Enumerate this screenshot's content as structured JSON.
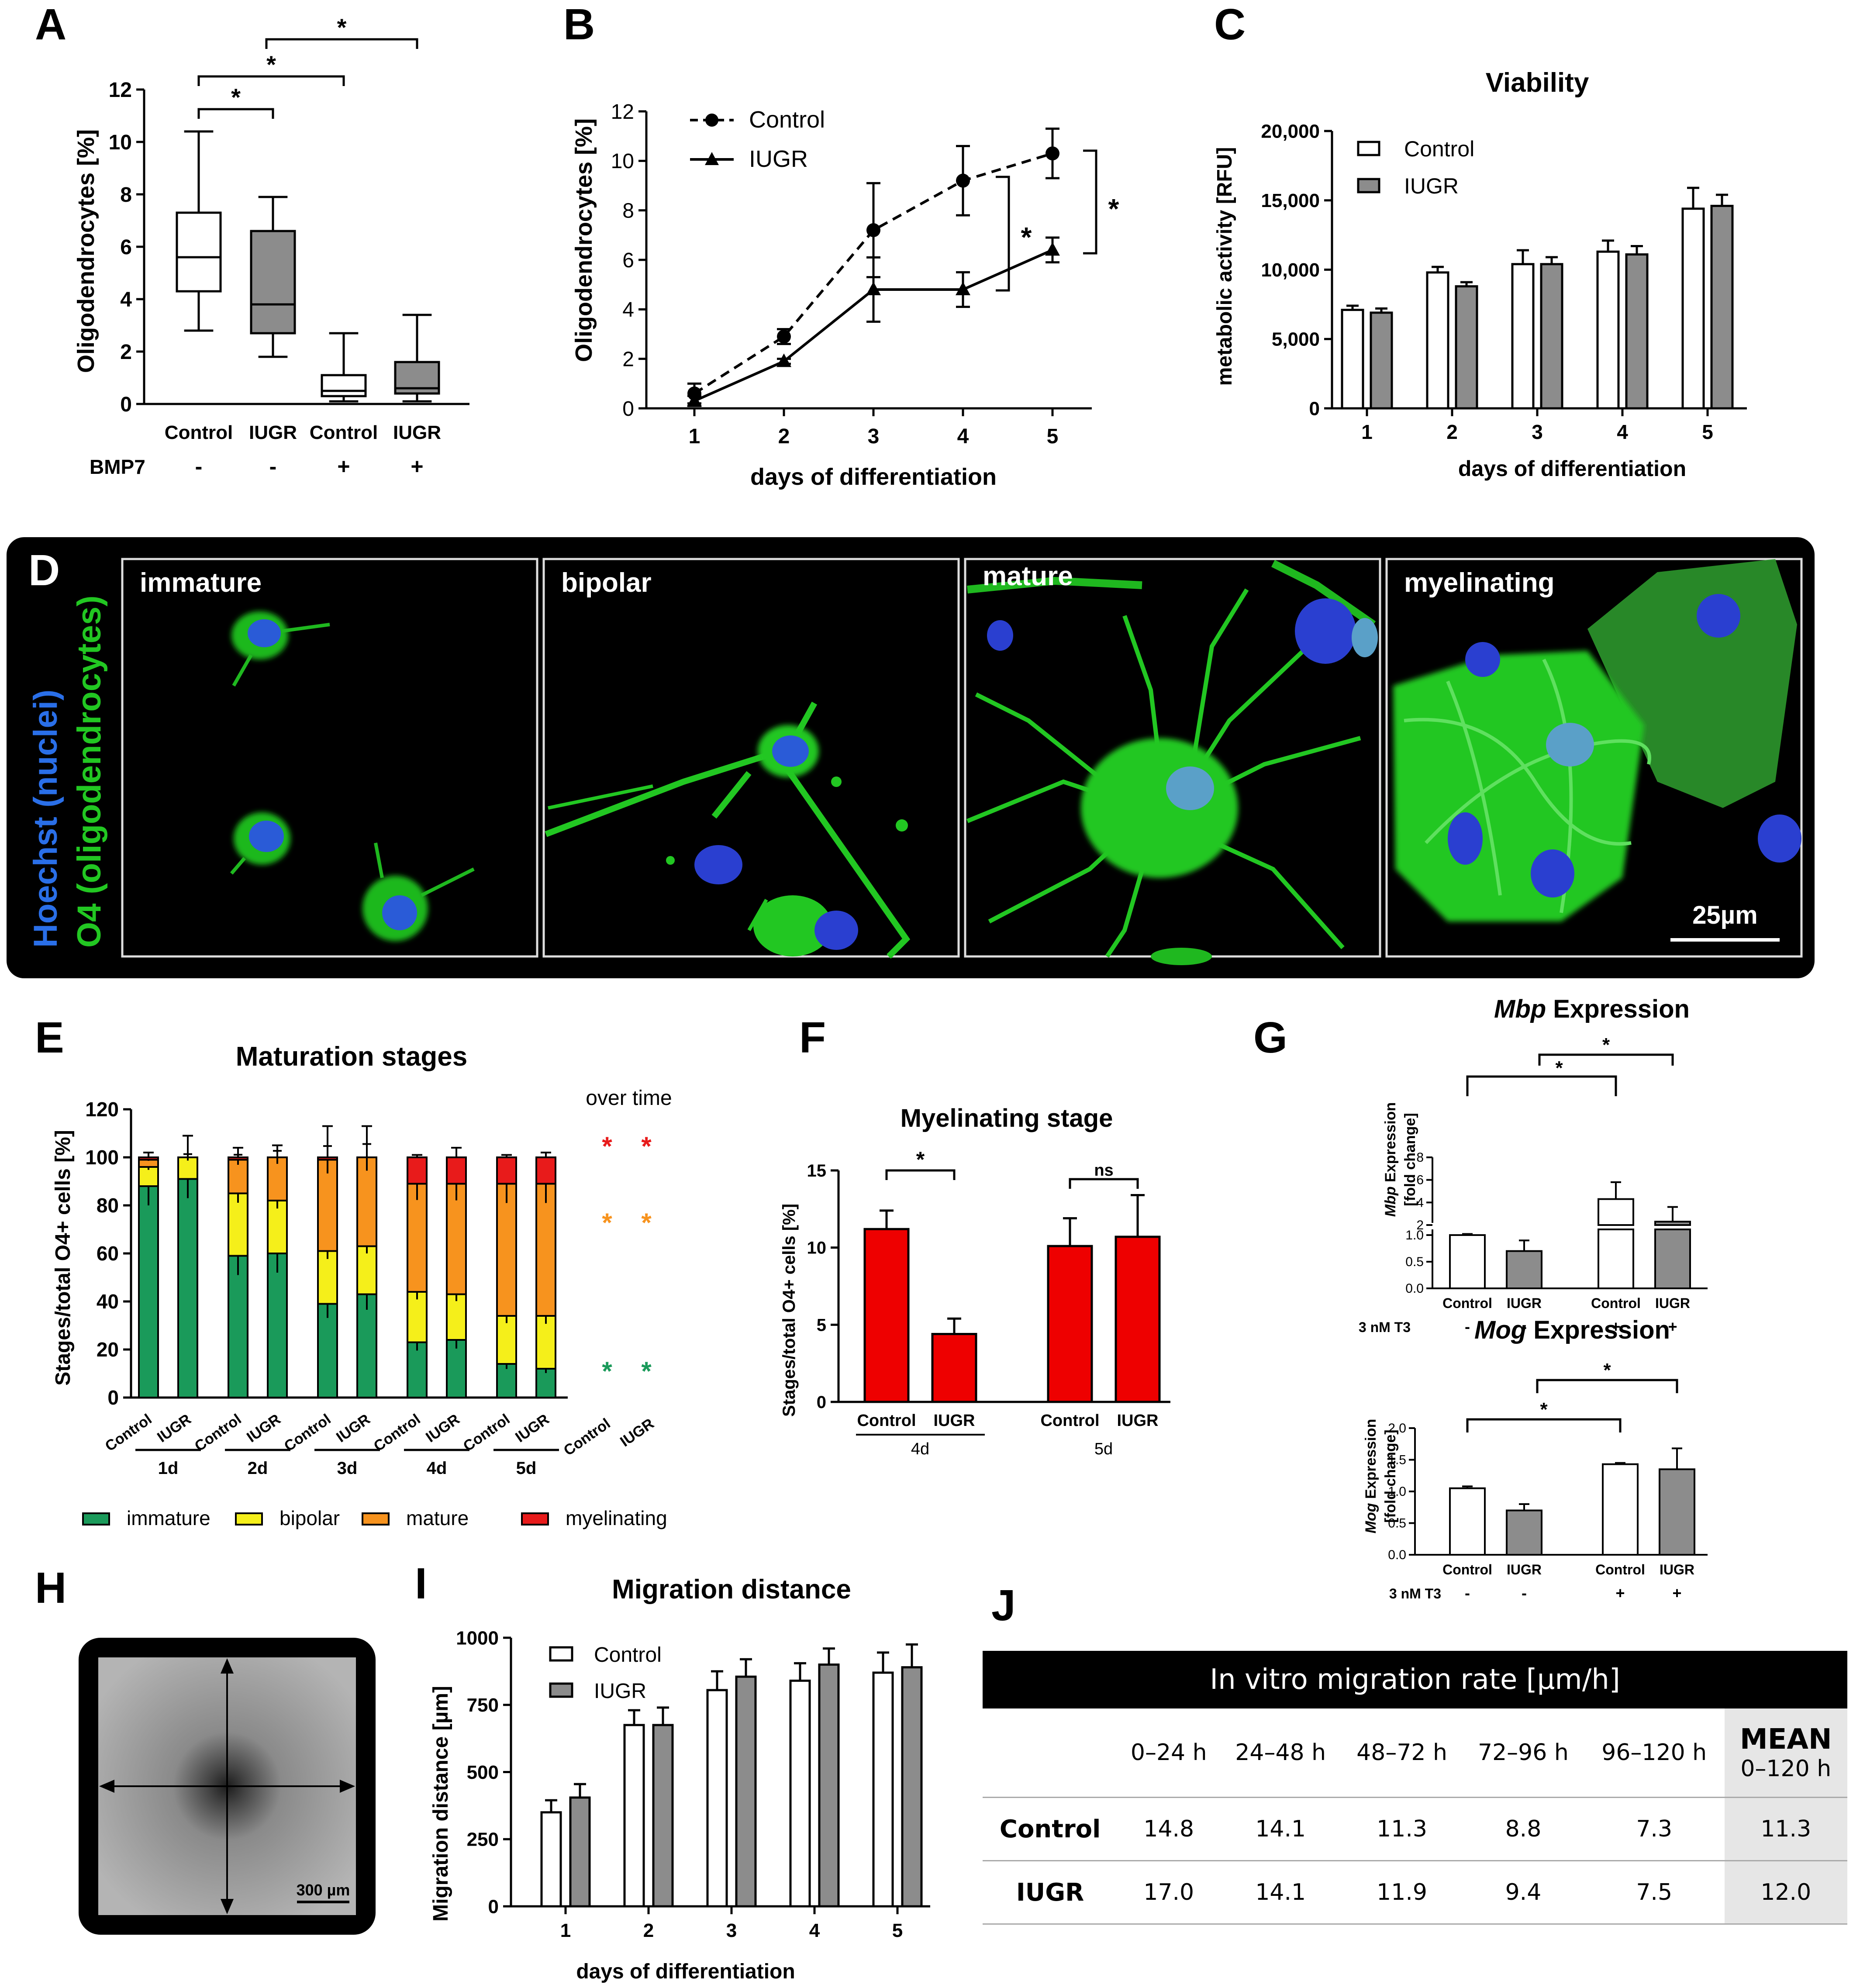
{
  "panelA": {
    "letter": "A",
    "ylabel": "Oligodendrocytes [%]",
    "yticks": [
      "0",
      "2",
      "4",
      "6",
      "8",
      "10",
      "12"
    ],
    "ymax": 12,
    "categories": [
      "Control",
      "IUGR",
      "Control",
      "IUGR"
    ],
    "bmp_label": "BMP7",
    "bmp_values": [
      "-",
      "-",
      "+",
      "+"
    ],
    "star": "*"
  },
  "panelB": {
    "letter": "B",
    "ylabel": "Oligodendrocytes [%]",
    "xlabel": "days of differentiation",
    "yticks": [
      "0",
      "2",
      "4",
      "6",
      "8",
      "10",
      "12"
    ],
    "xticks": [
      "1",
      "2",
      "3",
      "4",
      "5"
    ],
    "legend": [
      "Control",
      "IUGR"
    ],
    "star": "*"
  },
  "panelC": {
    "letter": "C",
    "title": "Viability",
    "ylabel": "metabolic activity  [RFU]",
    "xlabel": "days of differentiation",
    "yticks": [
      "0",
      "5,000",
      "10,000",
      "15,000",
      "20,000"
    ],
    "xticks": [
      "1",
      "2",
      "3",
      "4",
      "5"
    ],
    "legend": [
      "Control",
      "IUGR"
    ]
  },
  "panelD": {
    "letter": "D",
    "side_label_blue": "Hoechst (nuclei)",
    "side_label_green": "O4 (oligodendrocytes)",
    "stages": [
      "immature",
      "bipolar",
      "mature",
      "myelinating"
    ],
    "scale": "25µm",
    "colors": {
      "nuclei": "#2a5bd7",
      "o4": "#1fd61f"
    }
  },
  "panelE": {
    "letter": "E",
    "title": "Maturation stages",
    "ylabel": "Stages/total O4+ cells [%]",
    "yticks": [
      "0",
      "20",
      "40",
      "60",
      "80",
      "100",
      "120"
    ],
    "group_labels": [
      "1d",
      "2d",
      "3d",
      "4d",
      "5d"
    ],
    "bar_labels": [
      "Control",
      "IUGR"
    ],
    "over_time": "over time",
    "star": "*",
    "legend": [
      "immature",
      "bipolar",
      "mature",
      "myelinating"
    ],
    "colors": {
      "immature": "#1a9a5a",
      "bipolar": "#f5ef1a",
      "mature": "#f7931e",
      "myelinating": "#e81b1b"
    }
  },
  "panelF": {
    "letter": "F",
    "title": "Myelinating stage",
    "ylabel": "Stages/total O4+ cells [%]",
    "yticks": [
      "0",
      "5",
      "10",
      "15"
    ],
    "bar_labels": [
      "Control",
      "IUGR",
      "Control",
      "IUGR"
    ],
    "group_labels": [
      "4d",
      "5d"
    ],
    "star": "*",
    "ns": "ns"
  },
  "panelG": {
    "letter": "G",
    "mbp_title_italic": "Mbp",
    "mog_title_italic": "Mog",
    "title_suffix": " Expression",
    "ylabel_line2": "[fold change]",
    "mbp_yticks_low": [
      "0.0",
      "0.5",
      "1.0"
    ],
    "mbp_yticks_high": [
      "2",
      "4",
      "6",
      "8"
    ],
    "mog_yticks": [
      "0.0",
      "0.5",
      "1.0",
      "1.5",
      "2.0"
    ],
    "categories": [
      "Control",
      "IUGR",
      "Control",
      "IUGR"
    ],
    "t3_label": "3 nM T3",
    "t3_values": [
      "-",
      "-",
      "+",
      "+"
    ],
    "star": "*"
  },
  "panelH": {
    "letter": "H",
    "scale": "300 µm"
  },
  "panelI": {
    "letter": "I",
    "title": "Migration distance",
    "ylabel": "Migration distance [µm]",
    "xlabel": "days of differentiation",
    "yticks": [
      "0",
      "250",
      "500",
      "750",
      "1000"
    ],
    "xticks": [
      "1",
      "2",
      "3",
      "4",
      "5"
    ],
    "legend": [
      "Control",
      "IUGR"
    ]
  },
  "panelJ": {
    "letter": "J",
    "title": "In vitro migration rate [µm/h]",
    "columns": [
      "0–24 h",
      "24–48 h",
      "48–72 h",
      "72–96 h",
      "96–120 h"
    ],
    "mean_header": "MEAN",
    "mean_sub": "0–120 h",
    "rows": [
      {
        "label": "Control",
        "values": [
          "14.8",
          "14.1",
          "11.3",
          "8.8",
          "7.3"
        ],
        "mean": "11.3"
      },
      {
        "label": "IUGR",
        "values": [
          "17.0",
          "14.1",
          "11.9",
          "9.4",
          "7.5"
        ],
        "mean": "12.0"
      }
    ]
  },
  "chart_data": [
    {
      "panel": "A",
      "type": "box",
      "ylim": [
        0,
        12
      ],
      "boxes": [
        {
          "category": "Control",
          "bmp7": "-",
          "min": 2.8,
          "q1": 4.3,
          "median": 5.6,
          "q3": 7.3,
          "max": 10.4
        },
        {
          "category": "IUGR",
          "bmp7": "-",
          "min": 1.8,
          "q1": 2.7,
          "median": 3.8,
          "q3": 6.6,
          "max": 7.9
        },
        {
          "category": "Control",
          "bmp7": "+",
          "min": 0.1,
          "q1": 0.3,
          "median": 0.5,
          "q3": 1.1,
          "max": 2.7
        },
        {
          "category": "IUGR",
          "bmp7": "+",
          "min": 0.1,
          "q1": 0.4,
          "median": 0.6,
          "q3": 1.6,
          "max": 3.4
        }
      ]
    },
    {
      "panel": "B",
      "type": "line",
      "x": [
        1,
        2,
        3,
        4,
        5
      ],
      "ylim": [
        0,
        12
      ],
      "series": [
        {
          "name": "Control",
          "values": [
            0.6,
            2.9,
            7.2,
            9.2,
            10.3
          ],
          "errors": [
            0.4,
            0.3,
            1.9,
            1.4,
            1.0
          ]
        },
        {
          "name": "IUGR",
          "values": [
            0.3,
            1.9,
            4.8,
            4.8,
            6.4
          ],
          "errors": [
            0.2,
            0.1,
            1.3,
            0.7,
            0.5
          ]
        }
      ]
    },
    {
      "panel": "C",
      "type": "bar",
      "categories": [
        "1",
        "2",
        "3",
        "4",
        "5"
      ],
      "ylim": [
        0,
        20000
      ],
      "series": [
        {
          "name": "Control",
          "values": [
            7100,
            9800,
            10400,
            11300,
            14400
          ],
          "errors": [
            300,
            400,
            1000,
            800,
            1500
          ]
        },
        {
          "name": "IUGR",
          "values": [
            6900,
            8800,
            10400,
            11100,
            14600
          ],
          "errors": [
            300,
            300,
            500,
            600,
            800
          ]
        }
      ]
    },
    {
      "panel": "E",
      "type": "stacked_bar",
      "groups": [
        "1d",
        "2d",
        "3d",
        "4d",
        "5d"
      ],
      "ylim": [
        0,
        120
      ],
      "series": [
        {
          "name": "immature",
          "control": [
            88,
            59,
            39,
            23,
            14
          ],
          "iugr": [
            91,
            60,
            43,
            24,
            12
          ]
        },
        {
          "name": "bipolar",
          "control": [
            8,
            26,
            22,
            21,
            20
          ],
          "iugr": [
            9,
            22,
            20,
            19,
            22
          ]
        },
        {
          "name": "mature",
          "control": [
            3,
            14,
            38,
            45,
            55
          ],
          "iugr": [
            0,
            18,
            37,
            46,
            55
          ]
        },
        {
          "name": "myelinating",
          "control": [
            1,
            1,
            1,
            11,
            11
          ],
          "iugr": [
            0,
            0,
            0,
            11,
            11
          ]
        }
      ],
      "tops_errors": {
        "control": [
          2,
          4,
          13,
          1,
          1
        ],
        "iugr": [
          9,
          5,
          13,
          4,
          2
        ]
      }
    },
    {
      "panel": "F",
      "type": "bar",
      "categories": [
        "4d",
        "5d"
      ],
      "ylim": [
        0,
        15
      ],
      "series": [
        {
          "name": "Control",
          "values": [
            11.2,
            10.1
          ],
          "errors": [
            1.2,
            1.8
          ]
        },
        {
          "name": "IUGR",
          "values": [
            4.4,
            10.7
          ],
          "errors": [
            1.0,
            2.7
          ]
        }
      ]
    },
    {
      "panel": "G-Mbp",
      "type": "bar",
      "categories": [
        "Control -",
        "IUGR -",
        "Control +",
        "IUGR +"
      ],
      "values": [
        1.0,
        0.7,
        4.3,
        2.3
      ],
      "errors": [
        0.02,
        0.2,
        1.5,
        1.3
      ]
    },
    {
      "panel": "G-Mog",
      "type": "bar",
      "categories": [
        "Control -",
        "IUGR -",
        "Control +",
        "IUGR +"
      ],
      "ylim": [
        0,
        2
      ],
      "values": [
        1.05,
        0.7,
        1.43,
        1.35
      ],
      "errors": [
        0.03,
        0.1,
        0.02,
        0.33
      ]
    },
    {
      "panel": "I",
      "type": "bar",
      "categories": [
        "1",
        "2",
        "3",
        "4",
        "5"
      ],
      "ylim": [
        0,
        1000
      ],
      "series": [
        {
          "name": "Control",
          "values": [
            350,
            675,
            805,
            840,
            870
          ],
          "errors": [
            45,
            55,
            70,
            65,
            75
          ]
        },
        {
          "name": "IUGR",
          "values": [
            405,
            675,
            855,
            900,
            890
          ],
          "errors": [
            50,
            65,
            65,
            60,
            85
          ]
        }
      ]
    }
  ]
}
